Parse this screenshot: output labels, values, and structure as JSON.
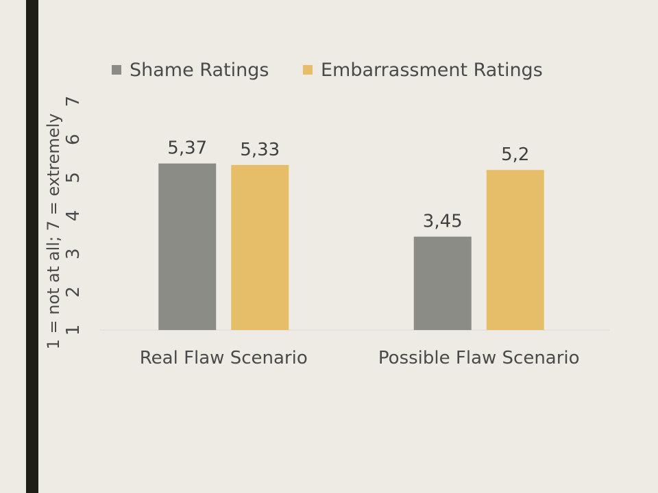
{
  "chart_data": {
    "type": "bar",
    "title": "",
    "xlabel": "",
    "ylabel": "1 = not at all; 7 = extremely",
    "categories": [
      "Real Flaw Scenario",
      "Possible Flaw Scenario"
    ],
    "series": [
      {
        "name": "Shame Ratings",
        "values": [
          5.37,
          3.45
        ],
        "labels": [
          "5,37",
          "3,45"
        ],
        "color": "#8C8C86"
      },
      {
        "name": "Embarrassment Ratings",
        "values": [
          5.33,
          5.2
        ],
        "labels": [
          "5,33",
          "5,2"
        ],
        "color": "#E6BE68"
      }
    ],
    "yticks": [
      "1",
      "2",
      "3",
      "4",
      "5",
      "6",
      "7"
    ],
    "ylim": [
      1,
      7
    ],
    "grid": false,
    "legend": "top"
  },
  "colors": {
    "background": "#EEEBE4",
    "side_bar": "#1E1E17",
    "axis_line": "#D9D9D9"
  }
}
